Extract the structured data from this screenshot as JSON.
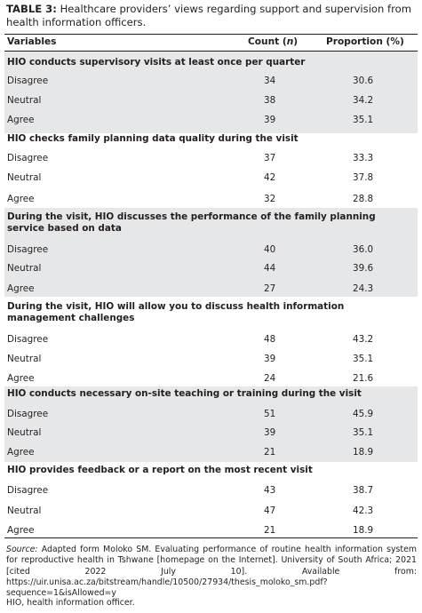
{
  "caption": {
    "label": "TABLE 3:",
    "text": "Healthcare providers’ views regarding support and supervision from health information officers."
  },
  "header": {
    "variables": "Variables",
    "count": "Count (",
    "count_n": "n",
    "count_close": ")",
    "proportion": "Proportion (%)"
  },
  "sections": [
    {
      "title": "HIO conducts supervisory visits at least once per quarter",
      "rows": [
        {
          "label": "Disagree",
          "count": "34",
          "pct": "30.6"
        },
        {
          "label": "Neutral",
          "count": "38",
          "pct": "34.2"
        },
        {
          "label": "Agree",
          "count": "39",
          "pct": "35.1"
        }
      ]
    },
    {
      "title": "HIO checks family planning data quality during the visit",
      "rows": [
        {
          "label": "Disagree",
          "count": "37",
          "pct": "33.3"
        },
        {
          "label": "Neutral",
          "count": "42",
          "pct": "37.8"
        },
        {
          "label": "Agree",
          "count": "32",
          "pct": "28.8"
        }
      ]
    },
    {
      "title": "During the visit, HIO discusses the performance of the family planning service based on data",
      "rows": [
        {
          "label": "Disagree",
          "count": "40",
          "pct": "36.0"
        },
        {
          "label": "Neutral",
          "count": "44",
          "pct": "39.6"
        },
        {
          "label": "Agree",
          "count": "27",
          "pct": "24.3"
        }
      ]
    },
    {
      "title": "During the visit, HIO will allow you to discuss health information management challenges",
      "rows": [
        {
          "label": "Disagree",
          "count": "48",
          "pct": "43.2"
        },
        {
          "label": "Neutral",
          "count": "39",
          "pct": "35.1"
        },
        {
          "label": "Agree",
          "count": "24",
          "pct": "21.6"
        }
      ]
    },
    {
      "title": "HIO conducts necessary on-site teaching or training during the visit",
      "rows": [
        {
          "label": "Disagree",
          "count": "51",
          "pct": "45.9"
        },
        {
          "label": "Neutral",
          "count": "39",
          "pct": "35.1"
        },
        {
          "label": "Agree",
          "count": "21",
          "pct": "18.9"
        }
      ]
    },
    {
      "title": "HIO provides feedback or a report on the most recent visit",
      "rows": [
        {
          "label": "Disagree",
          "count": "43",
          "pct": "38.7"
        },
        {
          "label": "Neutral",
          "count": "47",
          "pct": "42.3"
        },
        {
          "label": "Agree",
          "count": "21",
          "pct": "18.9"
        }
      ]
    }
  ],
  "footer": {
    "source_label": "Source:",
    "source_text": "Adapted form Moloko SM. Evaluating performance of routine health information system for reproductive health in Tshwane [homepage on the Internet]. University of South Africa; 2021 [cited 2022 July 10]. Available from: https://uir.unisa.ac.za/bitstream/handle/10500/27934/thesis_moloko_sm.pdf?sequence=1&isAllowed=y",
    "abbreviation": "HIO, health information officer."
  },
  "colors": {
    "shade": "#e6e7e8",
    "text": "#231f20"
  }
}
